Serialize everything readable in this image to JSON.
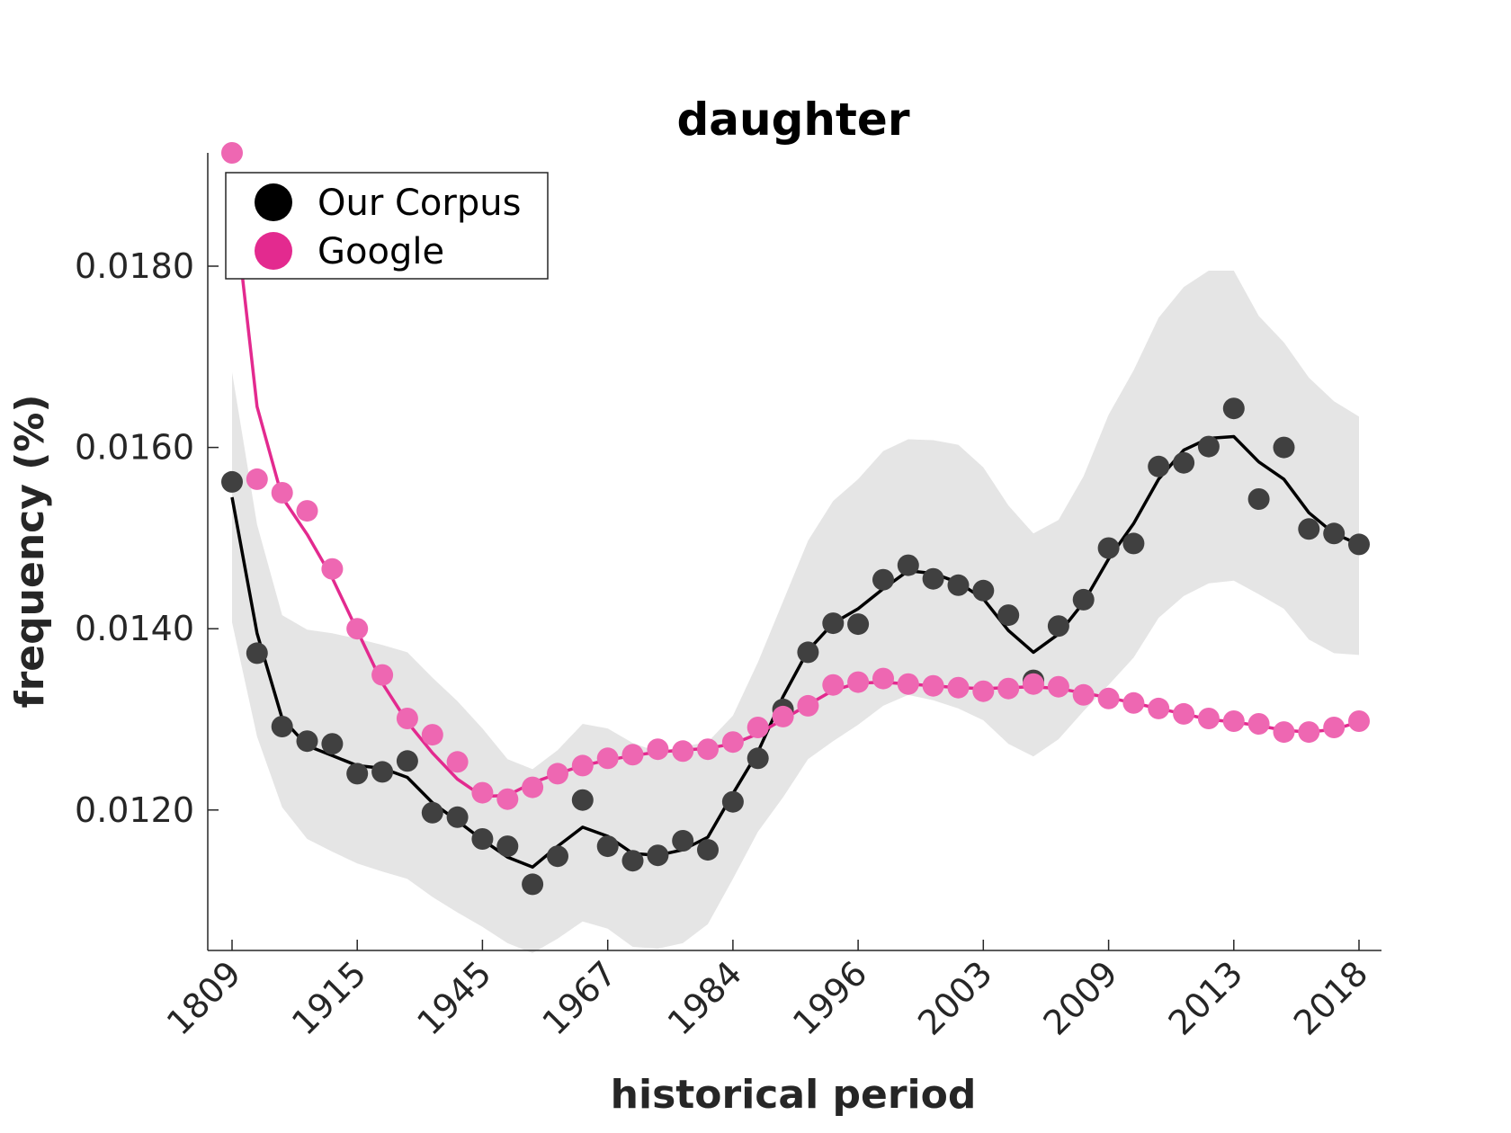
{
  "chart_data": {
    "type": "scatter",
    "title": "daughter",
    "xlabel": "historical period",
    "ylabel": "frequency (%)",
    "x_tick_labels": [
      "1809",
      "1915",
      "1945",
      "1967",
      "1984",
      "1996",
      "2003",
      "2009",
      "2013",
      "2018"
    ],
    "y_tick_labels": [
      "0.0120",
      "0.0140",
      "0.0160",
      "0.0180"
    ],
    "y_ticks": [
      0.012,
      0.014,
      0.016,
      0.018
    ],
    "ylim": [
      0.01045,
      0.01925
    ],
    "grid": false,
    "legend_position": "top-left",
    "series": [
      {
        "name": "Our Corpus",
        "color": "#404040",
        "line_color": "#000000",
        "points": [
          0.01562,
          0.01373,
          0.01292,
          0.01276,
          0.01273,
          0.0124,
          0.01242,
          0.01254,
          0.01197,
          0.01192,
          0.01168,
          0.0116,
          0.01118,
          0.01149,
          0.01211,
          0.0116,
          0.01144,
          0.0115,
          0.01166,
          0.01156,
          0.01209,
          0.01257,
          0.01311,
          0.01374,
          0.01406,
          0.01405,
          0.01454,
          0.0147,
          0.01455,
          0.01448,
          0.01442,
          0.01415,
          0.01343,
          0.01403,
          0.01432,
          0.01489,
          0.01494,
          0.01579,
          0.01583,
          0.01601,
          0.01643,
          0.01543,
          0.016,
          0.0151,
          0.01505,
          0.01493
        ],
        "smooth": [
          0.01545,
          0.01395,
          0.01301,
          0.01271,
          0.0126,
          0.01249,
          0.01246,
          0.01236,
          0.01208,
          0.01188,
          0.01167,
          0.01148,
          0.01137,
          0.0116,
          0.01181,
          0.01171,
          0.01152,
          0.0115,
          0.01156,
          0.0117,
          0.01218,
          0.01264,
          0.01325,
          0.01376,
          0.01406,
          0.01422,
          0.01444,
          0.01464,
          0.01461,
          0.01451,
          0.01433,
          0.01398,
          0.01374,
          0.01394,
          0.01429,
          0.01477,
          0.01516,
          0.01565,
          0.01597,
          0.0161,
          0.01612,
          0.01584,
          0.01565,
          0.01528,
          0.01505,
          0.01493
        ],
        "band_upper": [
          0.01683,
          0.01515,
          0.01415,
          0.01399,
          0.01395,
          0.01389,
          0.01382,
          0.01374,
          0.01346,
          0.0132,
          0.0129,
          0.01256,
          0.01245,
          0.01266,
          0.01295,
          0.0129,
          0.01274,
          0.01264,
          0.0127,
          0.01275,
          0.01304,
          0.01363,
          0.0143,
          0.01497,
          0.01541,
          0.01565,
          0.01596,
          0.01609,
          0.01608,
          0.01603,
          0.01578,
          0.01536,
          0.01505,
          0.0152,
          0.01568,
          0.01636,
          0.01685,
          0.01743,
          0.01777,
          0.01795,
          0.01795,
          0.01745,
          0.01716,
          0.01677,
          0.01651,
          0.01634
        ],
        "band_lower": [
          0.01407,
          0.01281,
          0.01203,
          0.01168,
          0.01154,
          0.01141,
          0.01132,
          0.01124,
          0.01104,
          0.01087,
          0.01071,
          0.01053,
          0.01042,
          0.01058,
          0.01077,
          0.01069,
          0.01049,
          0.01047,
          0.01053,
          0.01074,
          0.01124,
          0.01176,
          0.01214,
          0.01256,
          0.01276,
          0.01294,
          0.01315,
          0.01327,
          0.01321,
          0.01312,
          0.01299,
          0.01273,
          0.01259,
          0.01278,
          0.01309,
          0.01338,
          0.01368,
          0.01412,
          0.01436,
          0.0145,
          0.01453,
          0.01438,
          0.01422,
          0.01388,
          0.01373,
          0.01371
        ]
      },
      {
        "name": "Google",
        "color": "#ee67b2",
        "line_color": "#e32a8f",
        "points": [
          0.01925,
          0.01565,
          0.0155,
          0.0153,
          0.01466,
          0.014,
          0.01349,
          0.01301,
          0.01283,
          0.01253,
          0.01219,
          0.01212,
          0.01225,
          0.0124,
          0.01249,
          0.01257,
          0.01261,
          0.01267,
          0.01265,
          0.01267,
          0.01275,
          0.01291,
          0.01303,
          0.01315,
          0.01338,
          0.01341,
          0.01345,
          0.01339,
          0.01337,
          0.01335,
          0.01331,
          0.01334,
          0.01339,
          0.01336,
          0.01327,
          0.01323,
          0.01318,
          0.01312,
          0.01306,
          0.01301,
          0.01298,
          0.01295,
          0.01286,
          0.01286,
          0.01291,
          0.01298
        ],
        "smooth": [
          0.0189,
          0.01645,
          0.01545,
          0.01504,
          0.01456,
          0.01398,
          0.0134,
          0.01297,
          0.01263,
          0.01234,
          0.01215,
          0.01216,
          0.0123,
          0.0124,
          0.01249,
          0.01255,
          0.0126,
          0.01264,
          0.01266,
          0.01268,
          0.01273,
          0.01284,
          0.013,
          0.01316,
          0.01332,
          0.0134,
          0.01341,
          0.01339,
          0.01337,
          0.01335,
          0.01334,
          0.01335,
          0.01336,
          0.01334,
          0.01329,
          0.01324,
          0.01318,
          0.01312,
          0.01306,
          0.013,
          0.01297,
          0.01293,
          0.01288,
          0.01286,
          0.01289,
          0.01297
        ]
      }
    ]
  }
}
